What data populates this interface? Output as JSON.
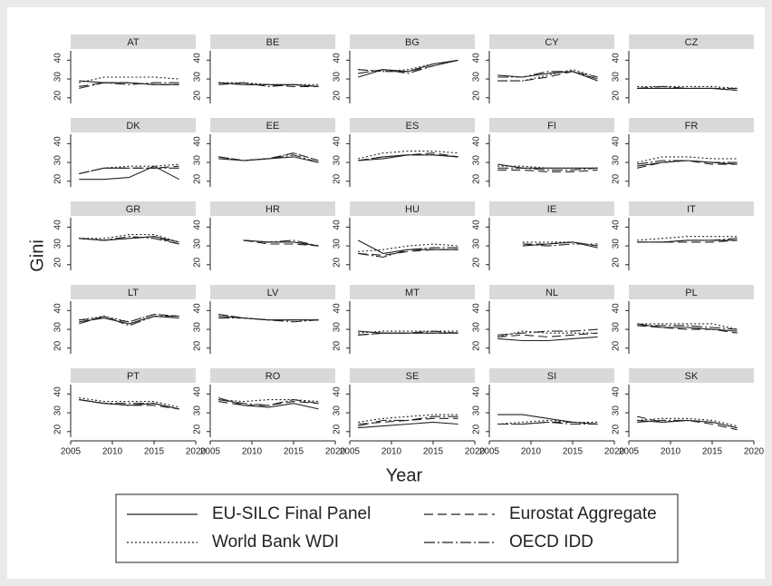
{
  "chart_data": {
    "type": "line",
    "y_label": "Gini",
    "x_label": "Year",
    "x": [
      2006,
      2009,
      2012,
      2015,
      2018
    ],
    "xlim": [
      2005,
      2020
    ],
    "xticks": [
      2005,
      2010,
      2015,
      2020
    ],
    "ylim": [
      17,
      45
    ],
    "yticks": [
      20,
      30,
      40
    ],
    "color": "#222222",
    "legend": "bottom",
    "series": [
      {
        "name": "EU-SILC Final Panel",
        "style": "solid"
      },
      {
        "name": "Eurostat Aggregate",
        "style": "dashed"
      },
      {
        "name": "World Bank WDI",
        "style": "dotted"
      },
      {
        "name": "OECD IDD",
        "style": "dashdot"
      }
    ],
    "panels": [
      {
        "title": "AT",
        "values": [
          [
            29,
            28,
            28,
            27,
            27
          ],
          [
            26,
            28,
            28,
            27,
            27
          ],
          [
            28,
            31,
            31,
            31,
            30
          ],
          [
            25,
            28,
            27,
            28,
            28
          ]
        ]
      },
      {
        "title": "BE",
        "values": [
          [
            28,
            27,
            27,
            27,
            26
          ],
          [
            28,
            27,
            27,
            26,
            26
          ],
          [
            28,
            28,
            27,
            27,
            27
          ],
          [
            27,
            28,
            26,
            27,
            26
          ]
        ]
      },
      {
        "title": "BG",
        "values": [
          [
            31,
            35,
            34,
            38,
            40
          ],
          [
            35,
            34,
            34,
            37,
            40
          ],
          [
            35,
            34,
            35,
            38,
            40
          ],
          [
            33,
            35,
            33,
            37,
            40
          ]
        ]
      },
      {
        "title": "CY",
        "values": [
          [
            32,
            31,
            33,
            34,
            29
          ],
          [
            29,
            29,
            31,
            34,
            31
          ],
          [
            29,
            29,
            32,
            35,
            31
          ],
          [
            31,
            31,
            34,
            34,
            30
          ]
        ]
      },
      {
        "title": "CZ",
        "values": [
          [
            25,
            25,
            25,
            25,
            24
          ],
          [
            25,
            25,
            25,
            25,
            24
          ],
          [
            26,
            26,
            26,
            26,
            25
          ],
          [
            25,
            26,
            25,
            25,
            25
          ]
        ]
      },
      {
        "title": "DK",
        "values": [
          [
            21,
            21,
            22,
            28,
            21
          ],
          [
            24,
            27,
            27,
            27,
            28
          ],
          [
            24,
            27,
            28,
            28,
            29
          ],
          [
            24,
            27,
            27,
            27,
            27
          ]
        ]
      },
      {
        "title": "EE",
        "values": [
          [
            32,
            31,
            32,
            33,
            30
          ],
          [
            33,
            31,
            32,
            35,
            31
          ],
          [
            33,
            31,
            32,
            35,
            31
          ],
          [
            33,
            31,
            32,
            34,
            30
          ]
        ]
      },
      {
        "title": "ES",
        "values": [
          [
            31,
            32,
            34,
            34,
            33
          ],
          [
            31,
            33,
            34,
            35,
            33
          ],
          [
            32,
            35,
            36,
            36,
            35
          ],
          [
            31,
            33,
            34,
            34,
            33
          ]
        ]
      },
      {
        "title": "FI",
        "values": [
          [
            29,
            27,
            27,
            27,
            27
          ],
          [
            26,
            26,
            25,
            25,
            26
          ],
          [
            28,
            28,
            27,
            27,
            27
          ],
          [
            27,
            27,
            26,
            26,
            27
          ]
        ]
      },
      {
        "title": "FR",
        "values": [
          [
            28,
            30,
            31,
            30,
            29
          ],
          [
            27,
            30,
            31,
            29,
            29
          ],
          [
            30,
            33,
            33,
            32,
            32
          ],
          [
            29,
            31,
            31,
            30,
            30
          ]
        ]
      },
      {
        "title": "GR",
        "values": [
          [
            34,
            33,
            34,
            35,
            32
          ],
          [
            34,
            33,
            34,
            35,
            31
          ],
          [
            34,
            34,
            36,
            36,
            32
          ],
          [
            34,
            33,
            35,
            34,
            31
          ]
        ]
      },
      {
        "title": "HR",
        "values": [
          [
            null,
            33,
            32,
            32,
            30
          ],
          [
            null,
            33,
            31,
            31,
            30
          ],
          [
            null,
            33,
            32,
            32,
            30
          ],
          [
            null,
            33,
            32,
            33,
            30
          ]
        ]
      },
      {
        "title": "HU",
        "values": [
          [
            33,
            26,
            28,
            28,
            28
          ],
          [
            26,
            25,
            27,
            28,
            28
          ],
          [
            27,
            28,
            30,
            31,
            30
          ],
          [
            26,
            24,
            28,
            29,
            29
          ]
        ]
      },
      {
        "title": "IE",
        "values": [
          [
            null,
            30,
            31,
            32,
            29
          ],
          [
            null,
            31,
            31,
            32,
            30
          ],
          [
            null,
            32,
            32,
            32,
            30
          ],
          [
            null,
            31,
            30,
            31,
            31
          ]
        ]
      },
      {
        "title": "IT",
        "values": [
          [
            32,
            32,
            33,
            33,
            33
          ],
          [
            32,
            32,
            32,
            32,
            33
          ],
          [
            33,
            34,
            35,
            35,
            35
          ],
          [
            32,
            32,
            33,
            33,
            34
          ]
        ]
      },
      {
        "title": "LT",
        "values": [
          [
            34,
            36,
            33,
            37,
            36
          ],
          [
            35,
            36,
            34,
            38,
            37
          ],
          [
            35,
            37,
            34,
            38,
            37
          ],
          [
            33,
            37,
            32,
            37,
            37
          ]
        ]
      },
      {
        "title": "LV",
        "values": [
          [
            37,
            36,
            35,
            35,
            35
          ],
          [
            38,
            36,
            35,
            35,
            35
          ],
          [
            38,
            36,
            35,
            35,
            35
          ],
          [
            36,
            36,
            35,
            34,
            35
          ]
        ]
      },
      {
        "title": "MT",
        "values": [
          [
            29,
            28,
            28,
            28,
            28
          ],
          [
            27,
            28,
            28,
            28,
            28
          ],
          [
            28,
            29,
            29,
            29,
            29
          ],
          [
            27,
            28,
            28,
            29,
            28
          ]
        ]
      },
      {
        "title": "NL",
        "values": [
          [
            25,
            24,
            24,
            25,
            26
          ],
          [
            26,
            27,
            26,
            27,
            28
          ],
          [
            26,
            29,
            28,
            28,
            28
          ],
          [
            27,
            28,
            29,
            29,
            30
          ]
        ]
      },
      {
        "title": "PL",
        "values": [
          [
            33,
            31,
            31,
            30,
            29
          ],
          [
            32,
            31,
            30,
            30,
            28
          ],
          [
            33,
            33,
            33,
            33,
            30
          ],
          [
            32,
            32,
            32,
            31,
            30
          ]
        ]
      },
      {
        "title": "PT",
        "values": [
          [
            37,
            35,
            34,
            35,
            32
          ],
          [
            37,
            35,
            34,
            34,
            32
          ],
          [
            38,
            36,
            36,
            36,
            33
          ],
          [
            37,
            35,
            35,
            35,
            32
          ]
        ]
      },
      {
        "title": "RO",
        "values": [
          [
            38,
            34,
            33,
            35,
            32
          ],
          [
            36,
            34,
            34,
            36,
            35
          ],
          [
            37,
            36,
            37,
            37,
            36
          ],
          [
            37,
            35,
            34,
            37,
            35
          ]
        ]
      },
      {
        "title": "SE",
        "values": [
          [
            22,
            23,
            24,
            25,
            24
          ],
          [
            24,
            25,
            26,
            27,
            27
          ],
          [
            25,
            27,
            28,
            29,
            29
          ],
          [
            23,
            26,
            26,
            28,
            28
          ]
        ]
      },
      {
        "title": "SI",
        "values": [
          [
            29,
            29,
            27,
            25,
            24
          ],
          [
            24,
            24,
            25,
            25,
            24
          ],
          [
            24,
            25,
            26,
            25,
            25
          ],
          [
            24,
            24,
            25,
            24,
            24
          ]
        ]
      },
      {
        "title": "SK",
        "values": [
          [
            26,
            25,
            26,
            25,
            22
          ],
          [
            28,
            25,
            26,
            24,
            21
          ],
          [
            26,
            27,
            27,
            26,
            23
          ],
          [
            25,
            26,
            26,
            25,
            22
          ]
        ]
      }
    ]
  }
}
